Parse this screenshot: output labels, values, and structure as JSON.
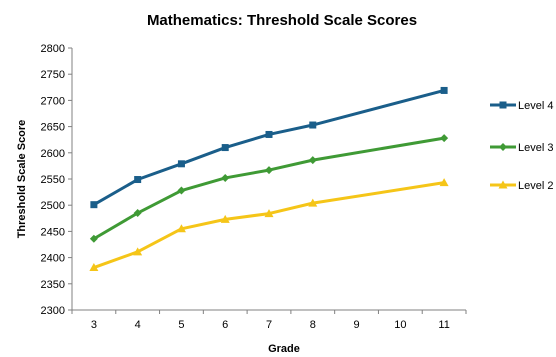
{
  "chart_data": {
    "type": "line",
    "title": "Mathematics:  Threshold Scale Scores",
    "xlabel": "Grade",
    "ylabel": "Threshold Scale Score",
    "categories": [
      "3",
      "4",
      "5",
      "6",
      "7",
      "8",
      "9",
      "10",
      "11"
    ],
    "ylim": [
      2300,
      2800
    ],
    "yticks": [
      2300,
      2350,
      2400,
      2450,
      2500,
      2550,
      2600,
      2650,
      2700,
      2750,
      2800
    ],
    "grid": false,
    "legend_position": "right",
    "series": [
      {
        "name": "Level 4",
        "color": "#1a5e8a",
        "marker": "square",
        "points": [
          [
            3,
            2501
          ],
          [
            4,
            2549
          ],
          [
            5,
            2579
          ],
          [
            6,
            2610
          ],
          [
            7,
            2635
          ],
          [
            8,
            2653
          ],
          [
            11,
            2719
          ]
        ]
      },
      {
        "name": "Level 3",
        "color": "#3f9a35",
        "marker": "diamond",
        "points": [
          [
            3,
            2436
          ],
          [
            4,
            2485
          ],
          [
            5,
            2528
          ],
          [
            6,
            2552
          ],
          [
            7,
            2567
          ],
          [
            8,
            2586
          ],
          [
            11,
            2628
          ]
        ]
      },
      {
        "name": "Level 2",
        "color": "#f5c518",
        "marker": "triangle",
        "points": [
          [
            3,
            2381
          ],
          [
            4,
            2411
          ],
          [
            5,
            2455
          ],
          [
            6,
            2473
          ],
          [
            7,
            2484
          ],
          [
            8,
            2504
          ],
          [
            11,
            2543
          ]
        ]
      }
    ]
  }
}
